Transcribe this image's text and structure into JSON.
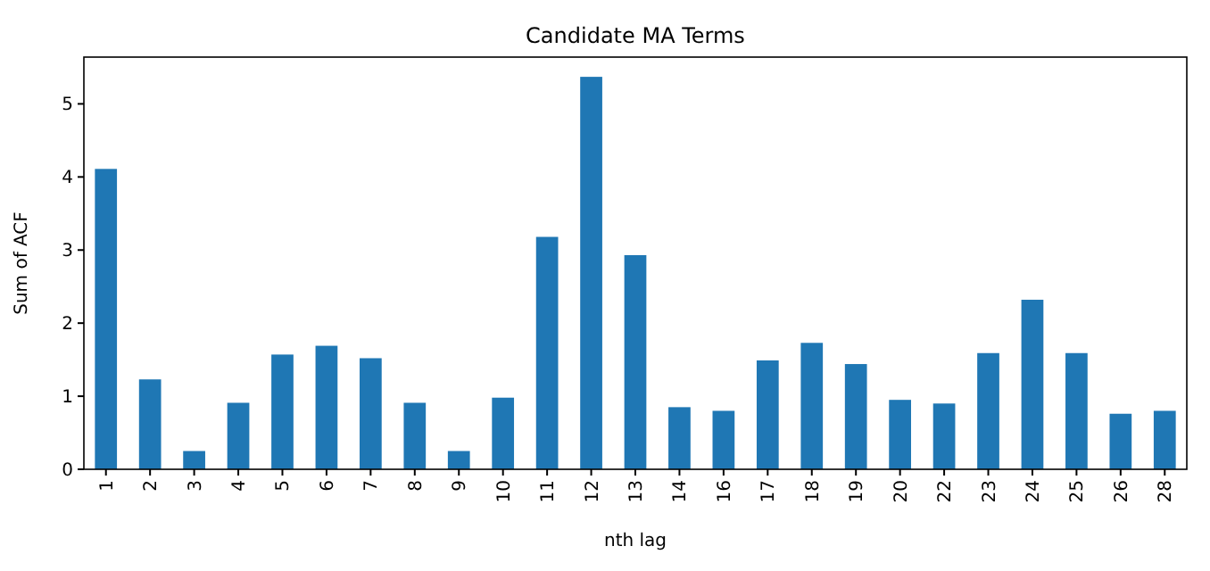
{
  "chart_data": {
    "type": "bar",
    "title": "Candidate MA Terms",
    "xlabel": "nth lag",
    "ylabel": "Sum of ACF",
    "categories": [
      "1",
      "2",
      "3",
      "4",
      "5",
      "6",
      "7",
      "8",
      "9",
      "10",
      "11",
      "12",
      "13",
      "14",
      "16",
      "17",
      "18",
      "19",
      "20",
      "22",
      "23",
      "24",
      "25",
      "26",
      "28"
    ],
    "values": [
      4.11,
      1.23,
      0.25,
      0.91,
      1.57,
      1.69,
      1.52,
      0.91,
      0.25,
      0.98,
      3.18,
      5.37,
      2.93,
      0.85,
      0.8,
      1.49,
      1.73,
      1.44,
      0.95,
      0.9,
      1.59,
      2.32,
      1.59,
      0.76,
      0.8
    ],
    "color": "#1f77b4",
    "ylim": [
      0,
      5.64
    ],
    "yticks": [
      0,
      1,
      2,
      3,
      4,
      5
    ],
    "grid": false
  }
}
